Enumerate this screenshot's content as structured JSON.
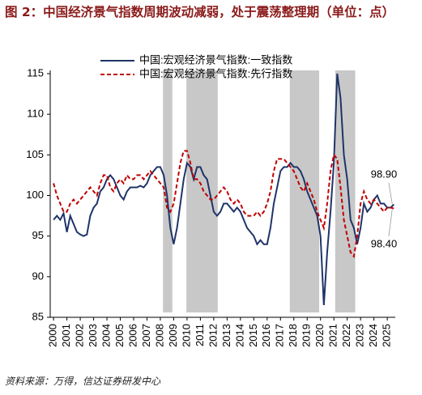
{
  "chart_data": {
    "type": "line",
    "title": "图 2：中国经济景气指数周期波动减弱，处于震荡整理期（单位：点）",
    "source": "资料来源：万得，信达证券研发中心",
    "x": [
      2000,
      2000.25,
      2000.5,
      2000.75,
      2001,
      2001.25,
      2001.5,
      2001.75,
      2002,
      2002.25,
      2002.5,
      2002.75,
      2003,
      2003.25,
      2003.5,
      2003.75,
      2004,
      2004.25,
      2004.5,
      2004.75,
      2005,
      2005.25,
      2005.5,
      2005.75,
      2006,
      2006.25,
      2006.5,
      2006.75,
      2007,
      2007.25,
      2007.5,
      2007.75,
      2008,
      2008.25,
      2008.5,
      2008.75,
      2009,
      2009.25,
      2009.5,
      2009.75,
      2010,
      2010.25,
      2010.5,
      2010.75,
      2011,
      2011.25,
      2011.5,
      2011.75,
      2012,
      2012.25,
      2012.5,
      2012.75,
      2013,
      2013.25,
      2013.5,
      2013.75,
      2014,
      2014.25,
      2014.5,
      2014.75,
      2015,
      2015.25,
      2015.5,
      2015.75,
      2016,
      2016.25,
      2016.5,
      2016.75,
      2017,
      2017.25,
      2017.5,
      2017.75,
      2018,
      2018.25,
      2018.5,
      2018.75,
      2019,
      2019.25,
      2019.5,
      2019.75,
      2020,
      2020.25,
      2020.5,
      2020.75,
      2021,
      2021.25,
      2021.5,
      2021.75,
      2022,
      2022.25,
      2022.5,
      2022.75,
      2023,
      2023.25,
      2023.5,
      2023.75,
      2024,
      2024.25,
      2024.5,
      2024.75,
      2025,
      2025.25,
      2025.5
    ],
    "series": [
      {
        "name": "中国:宏观经济景气指数:一致指数",
        "color": "#1f3468",
        "dash": false,
        "values": [
          97,
          97.5,
          97,
          97.8,
          95.5,
          97.5,
          96.5,
          95.5,
          95.2,
          95,
          95.2,
          97.5,
          98.5,
          99,
          100.5,
          101,
          102,
          102.5,
          102,
          101,
          100,
          99.5,
          100.5,
          101,
          101,
          101,
          101.2,
          101,
          101.5,
          102.5,
          103,
          103.5,
          103.5,
          102.5,
          100,
          96,
          94,
          96,
          99,
          102,
          104,
          103.5,
          102,
          103.5,
          103.5,
          102.5,
          102,
          100,
          98,
          97.5,
          98,
          99,
          99,
          98.5,
          98,
          98.5,
          98,
          97,
          96,
          95.5,
          95,
          94,
          94.5,
          94,
          94,
          96,
          99,
          101,
          103,
          103.5,
          103.5,
          104,
          103.5,
          103.5,
          103,
          102,
          100.5,
          99.5,
          98.5,
          97.5,
          95,
          86.5,
          93,
          98,
          104,
          115,
          112,
          105,
          102,
          97,
          96,
          94,
          96,
          99,
          98,
          98.5,
          99.5,
          100,
          99,
          99,
          98.5,
          98.5,
          98.9
        ]
      },
      {
        "name": "中国:宏观经济景气指数:先行指数",
        "color": "#c00000",
        "dash": true,
        "values": [
          101.5,
          100,
          99,
          98,
          98,
          99,
          99.5,
          99,
          99.5,
          100,
          100.5,
          101,
          100.5,
          100,
          101.5,
          102.5,
          102.5,
          101,
          100.5,
          101.5,
          102,
          101.5,
          102.5,
          102,
          102,
          102.5,
          102.5,
          102,
          102.5,
          103,
          102.5,
          102,
          101.5,
          101,
          98.5,
          98,
          99,
          101.5,
          104,
          105.5,
          105.5,
          104,
          102,
          102,
          101.5,
          100.5,
          100,
          99.5,
          99.5,
          100,
          100.5,
          101,
          100.5,
          99.5,
          99,
          99.5,
          99,
          98,
          97.5,
          97.5,
          97.5,
          98,
          97.5,
          98,
          99,
          100.5,
          103,
          104.5,
          104.5,
          104.5,
          104,
          103.5,
          103,
          102,
          101,
          100.5,
          101.5,
          100.5,
          99.5,
          98,
          97,
          96,
          99,
          103,
          105,
          104.5,
          101,
          97,
          95,
          93,
          92.5,
          95,
          99,
          100.5,
          99.5,
          99,
          99.5,
          99,
          98.5,
          98,
          98.5,
          98.5,
          98.4
        ]
      }
    ],
    "shaded_periods": [
      [
        2008.2,
        2008.9
      ],
      [
        2009.95,
        2012.3
      ],
      [
        2017.7,
        2019.9
      ],
      [
        2021.1,
        2022.6
      ]
    ],
    "annotations": [
      "98.90",
      "98.40"
    ],
    "xlim": [
      1999.75,
      2025.6
    ],
    "xticks": [
      2000,
      2001,
      2002,
      2003,
      2004,
      2005,
      2006,
      2007,
      2008,
      2009,
      2010,
      2011,
      2012,
      2013,
      2014,
      2015,
      2016,
      2017,
      2018,
      2019,
      2020,
      2021,
      2022,
      2023,
      2024,
      2025
    ],
    "ylim": [
      85,
      115
    ],
    "yticks": [
      85,
      90,
      95,
      100,
      105,
      110,
      115
    ]
  }
}
